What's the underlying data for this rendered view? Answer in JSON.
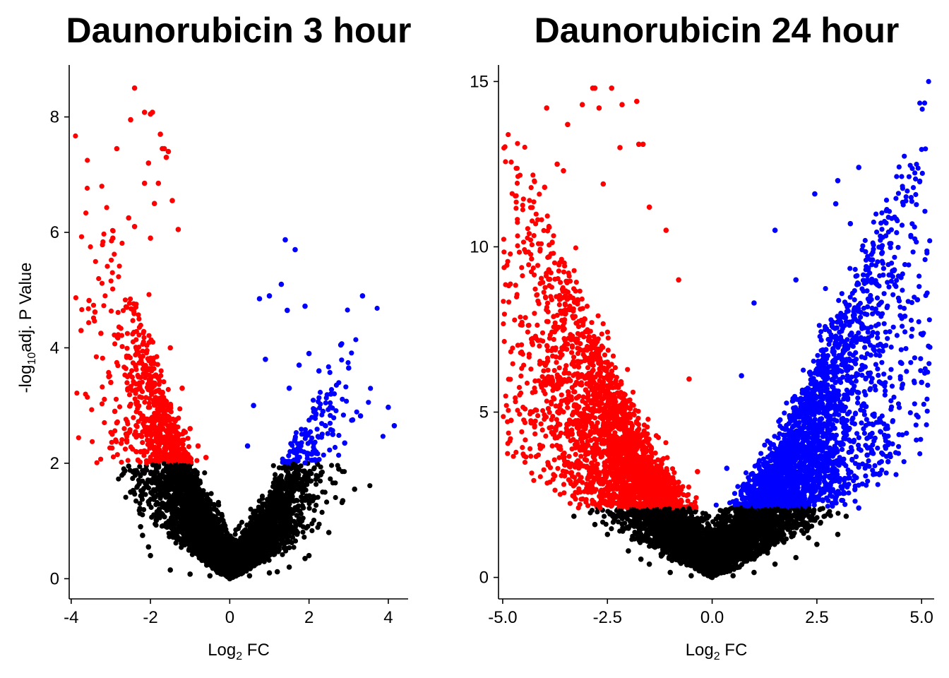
{
  "chart_data": [
    {
      "type": "scatter",
      "title": "Daunorubicin 3 hour",
      "xlabel": "Log2 FC",
      "ylabel": "-log10adj. P Value",
      "xlim": [
        -4.05,
        4.5
      ],
      "ylim": [
        -0.35,
        8.9
      ],
      "xticks": [
        "-4",
        "-2",
        "0",
        "2",
        "4"
      ],
      "yticks": [
        "0",
        "2",
        "4",
        "6",
        "8"
      ],
      "grid": false,
      "legend": "none",
      "colors": {
        "down": "#ff0000",
        "up": "#0000ff",
        "ns": "#000000"
      },
      "significance_threshold_y": 2.0,
      "series": [
        {
          "group": "down",
          "x": [
            -2.4,
            -2.15,
            -2.0,
            -1.95,
            -1.75,
            -1.65,
            -1.7,
            -1.6,
            -1.55,
            -2.5,
            -2.85,
            -2.05,
            -2.15,
            -1.8,
            -1.45,
            -1.9,
            -2.55,
            -2.4,
            -1.3,
            -2.0,
            -2.95,
            -3.55,
            -3.75,
            -3.4,
            -3.25,
            -3.05,
            -3.0,
            -2.9,
            -2.85,
            -2.6,
            -2.25,
            -1.85,
            -1.5,
            -1.2,
            -1.0,
            -0.8,
            -0.6
          ],
          "y": [
            8.5,
            8.08,
            8.05,
            8.08,
            7.7,
            7.45,
            7.45,
            7.3,
            7.4,
            7.95,
            7.45,
            7.2,
            6.85,
            6.85,
            6.55,
            6.5,
            6.25,
            6.1,
            6.05,
            5.9,
            5.9,
            4.82,
            4.3,
            4.62,
            4.25,
            3.5,
            3.4,
            2.9,
            2.7,
            2.4,
            2.2,
            2.4,
            4.0,
            3.3,
            2.6,
            2.3,
            2.1
          ]
        },
        {
          "group": "up",
          "x": [
            1.4,
            1.65,
            1.3,
            1.0,
            0.75,
            1.45,
            1.9,
            2.0,
            1.75,
            3.35,
            2.8,
            3.0,
            2.25,
            2.55,
            2.35,
            4.0,
            4.15,
            3.3,
            3.1,
            2.6,
            2.9,
            2.1,
            1.5,
            0.9,
            0.6,
            0.45
          ],
          "y": [
            5.87,
            5.7,
            5.1,
            4.9,
            4.85,
            4.65,
            4.72,
            3.9,
            3.7,
            4.9,
            4.05,
            3.65,
            3.6,
            3.2,
            2.9,
            2.97,
            2.65,
            2.82,
            2.75,
            2.5,
            2.35,
            2.2,
            3.3,
            3.8,
            3.0,
            2.3
          ]
        },
        {
          "group": "ns",
          "x": [
            -2.55,
            -2.5,
            -2.2,
            -2.0,
            -1.5,
            -1.0,
            -0.5,
            0.0,
            0.5,
            1.0,
            1.5,
            2.0,
            2.5,
            2.85,
            3.15,
            2.75,
            -2.05,
            -2.25,
            1.9,
            1.2
          ],
          "y": [
            1.95,
            1.5,
            0.75,
            0.4,
            0.15,
            0.08,
            0.05,
            0.0,
            0.05,
            0.1,
            0.2,
            0.4,
            0.8,
            1.35,
            1.55,
            1.9,
            0.55,
            0.9,
            0.35,
            0.12
          ]
        }
      ]
    },
    {
      "type": "scatter",
      "title": "Daunorubicin 24 hour",
      "xlabel": "Log2 FC",
      "ylabel": "",
      "xlim": [
        -5.1,
        5.3
      ],
      "ylim": [
        -0.65,
        15.5
      ],
      "xticks": [
        "-5.0",
        "-2.5",
        "0.0",
        "2.5",
        "5.0"
      ],
      "yticks": [
        "0",
        "5",
        "10",
        "15"
      ],
      "grid": false,
      "legend": "none",
      "colors": {
        "down": "#ff0000",
        "up": "#0000ff",
        "ns": "#000000"
      },
      "significance_threshold_y": 2.1,
      "series": [
        {
          "group": "down",
          "x": [
            -2.85,
            -2.8,
            -2.4,
            -3.95,
            -3.45,
            -3.1,
            -2.7,
            -2.15,
            -1.8,
            -1.75,
            -1.65,
            -2.2,
            -4.8,
            -4.1,
            -4.3,
            -3.3,
            -4.0,
            -3.7,
            -3.55,
            -2.6,
            -1.5,
            -1.1,
            -0.8,
            -0.55,
            -0.35,
            -3.9,
            -3.4
          ],
          "y": [
            14.8,
            14.8,
            14.8,
            14.2,
            13.7,
            14.3,
            14.2,
            14.3,
            14.4,
            13.1,
            13.1,
            13.0,
            4.75,
            3.9,
            7.1,
            2.45,
            11.8,
            12.5,
            12.3,
            11.9,
            11.2,
            10.5,
            9.0,
            6.0,
            3.2,
            9.3,
            8.2
          ]
        },
        {
          "group": "up",
          "x": [
            3.5,
            3.0,
            2.95,
            2.45,
            3.3,
            4.05,
            4.35,
            4.9,
            5.0,
            4.5,
            4.0,
            3.7,
            3.5,
            1.5,
            1.0,
            0.7,
            0.35,
            2.0,
            2.7,
            4.6,
            4.2
          ],
          "y": [
            12.4,
            12.0,
            11.3,
            11.6,
            10.7,
            9.8,
            9.3,
            8.4,
            5.9,
            6.5,
            4.8,
            3.7,
            2.1,
            10.5,
            8.3,
            6.1,
            3.3,
            9.0,
            7.5,
            7.9,
            3.5
          ]
        },
        {
          "group": "ns",
          "x": [
            -3.3,
            -2.8,
            -2.5,
            -2.0,
            -1.5,
            -1.0,
            -0.5,
            0.0,
            0.5,
            1.0,
            1.5,
            2.0,
            2.5,
            3.0,
            3.2,
            -1.7,
            2.3
          ],
          "y": [
            1.85,
            1.6,
            1.3,
            0.8,
            0.4,
            0.15,
            0.05,
            0.0,
            0.05,
            0.15,
            0.4,
            0.6,
            1.0,
            1.3,
            1.85,
            0.55,
            1.2
          ]
        }
      ]
    }
  ]
}
